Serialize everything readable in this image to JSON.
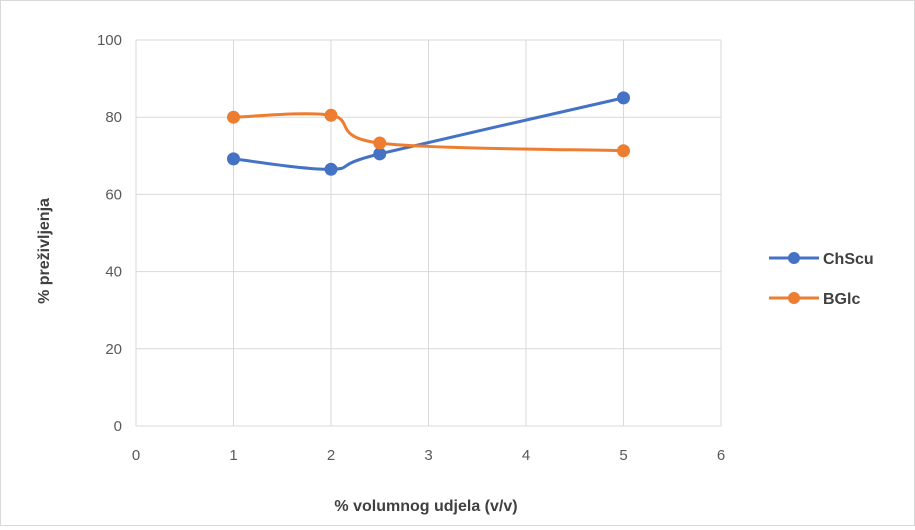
{
  "chart_data": {
    "type": "line",
    "smooth": true,
    "xlabel": "% volumnog udjela (v/v)",
    "ylabel": "% preživljenja",
    "xlim": [
      0,
      6
    ],
    "ylim": [
      0,
      100
    ],
    "x_ticks": [
      "0",
      "1",
      "2",
      "3",
      "4",
      "5",
      "6"
    ],
    "y_ticks": [
      "0",
      "20",
      "40",
      "60",
      "80",
      "100"
    ],
    "grid": true,
    "legend_position": "right",
    "series": [
      {
        "name": "ChScu",
        "color": "#4472c4",
        "x": [
          1,
          2,
          2.5,
          5
        ],
        "y": [
          69.2,
          66.5,
          70.5,
          85
        ]
      },
      {
        "name": "BGlc",
        "color": "#ed7d31",
        "x": [
          1,
          2,
          2.5,
          5
        ],
        "y": [
          80,
          80.5,
          73.3,
          71.3
        ]
      }
    ]
  }
}
